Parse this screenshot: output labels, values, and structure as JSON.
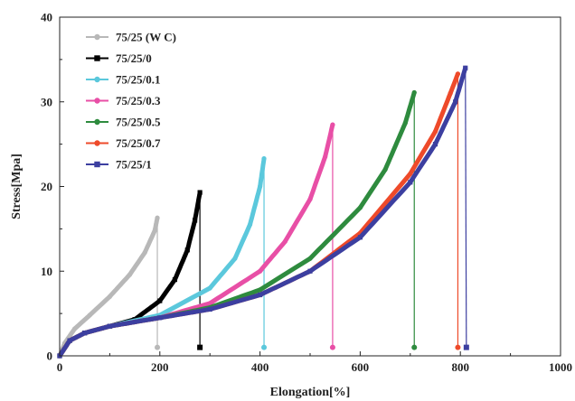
{
  "chart_data": {
    "type": "line",
    "xlabel": "Elongation[%]",
    "ylabel": "Stress[Mpa]",
    "xlim": [
      0,
      1000
    ],
    "ylim": [
      0,
      40
    ],
    "xticks": [
      "0",
      "200",
      "400",
      "600",
      "800",
      "1000"
    ],
    "yticks": [
      "0",
      "10",
      "20",
      "30",
      "40"
    ],
    "grid": false,
    "legend_position": "top-left",
    "series": [
      {
        "name": "75/25 (W C)",
        "color": "#b8b8b8",
        "marker": "circle",
        "x": [
          0,
          10,
          30,
          60,
          100,
          140,
          170,
          190,
          195
        ],
        "y": [
          0,
          1.5,
          3.2,
          4.8,
          7.0,
          9.6,
          12.2,
          14.8,
          16.3
        ],
        "break_x": 195,
        "break_y": 1.0
      },
      {
        "name": "75/25/0",
        "color": "#000000",
        "marker": "square",
        "x": [
          0,
          20,
          50,
          100,
          150,
          200,
          230,
          255,
          270,
          280
        ],
        "y": [
          0,
          1.8,
          2.7,
          3.5,
          4.3,
          6.5,
          9.0,
          12.5,
          16.0,
          19.3
        ],
        "break_x": 280,
        "break_y": 1.0
      },
      {
        "name": "75/25/0.1",
        "color": "#5bc8dc",
        "marker": "circle",
        "x": [
          0,
          20,
          50,
          100,
          200,
          300,
          350,
          380,
          400,
          408
        ],
        "y": [
          0,
          1.8,
          2.7,
          3.5,
          4.8,
          8.0,
          11.5,
          15.5,
          20.0,
          23.3
        ],
        "break_x": 408,
        "break_y": 1.0
      },
      {
        "name": "75/25/0.3",
        "color": "#e84fa6",
        "marker": "circle",
        "x": [
          0,
          20,
          50,
          100,
          200,
          300,
          400,
          450,
          500,
          530,
          545
        ],
        "y": [
          0,
          1.8,
          2.7,
          3.5,
          4.5,
          6.2,
          10.0,
          13.5,
          18.5,
          23.5,
          27.3
        ],
        "break_x": 545,
        "break_y": 1.0
      },
      {
        "name": "75/25/0.5",
        "color": "#2e8b3e",
        "marker": "circle",
        "x": [
          0,
          20,
          50,
          100,
          200,
          300,
          400,
          500,
          600,
          650,
          690,
          708
        ],
        "y": [
          0,
          1.8,
          2.7,
          3.5,
          4.5,
          5.7,
          7.8,
          11.5,
          17.5,
          22.0,
          27.5,
          31.1
        ],
        "break_x": 708,
        "break_y": 1.0
      },
      {
        "name": "75/25/0.7",
        "color": "#ee4a2a",
        "marker": "circle",
        "x": [
          0,
          20,
          50,
          100,
          200,
          300,
          400,
          500,
          600,
          700,
          750,
          780,
          795
        ],
        "y": [
          0,
          1.8,
          2.7,
          3.5,
          4.5,
          5.5,
          7.2,
          10.0,
          14.5,
          21.5,
          26.5,
          31.0,
          33.3
        ],
        "break_x": 795,
        "break_y": 1.0
      },
      {
        "name": "75/25/1",
        "color": "#3c3fa0",
        "marker": "square",
        "x": [
          0,
          20,
          50,
          100,
          200,
          300,
          400,
          500,
          600,
          700,
          750,
          790,
          810
        ],
        "y": [
          0,
          1.8,
          2.7,
          3.5,
          4.5,
          5.5,
          7.2,
          10.0,
          14.0,
          20.5,
          25.0,
          30.0,
          34.0
        ],
        "break_x": 812,
        "break_y": 1.0
      }
    ]
  }
}
